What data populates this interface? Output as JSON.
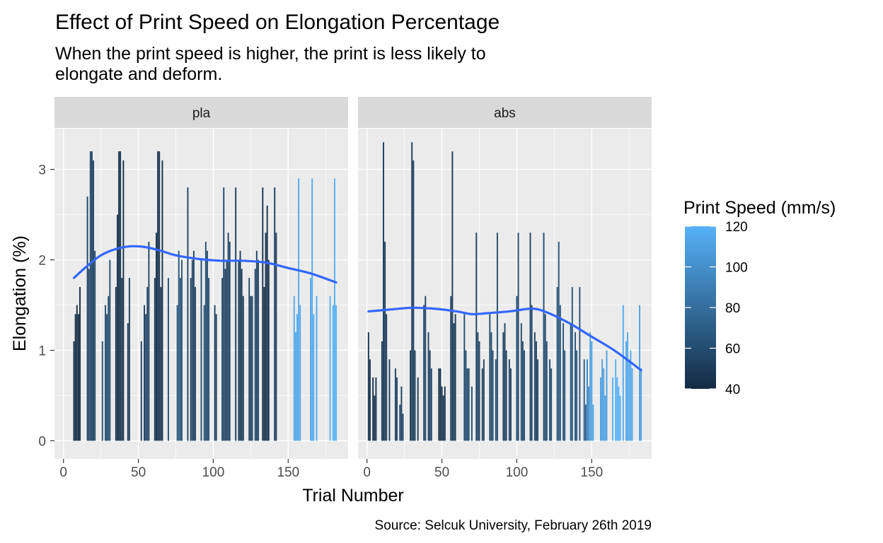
{
  "chart_data": {
    "type": "bar",
    "title": "Effect of Print Speed on Elongation Percentage",
    "subtitle_lines": [
      "When the print speed is higher, the print is less likely to",
      "elongate and deform."
    ],
    "xlabel": "Trial Number",
    "ylabel": "Elongation (%)",
    "caption": "Source: Selcuk University, February 26th 2019",
    "xlim": [
      -6,
      190
    ],
    "ylim": [
      -0.2,
      3.45
    ],
    "x_ticks": [
      0,
      50,
      100,
      150
    ],
    "y_ticks": [
      0,
      1,
      2,
      3
    ],
    "grid": true,
    "legend": {
      "title": "Print Speed (mm/s)",
      "type": "colorbar",
      "position": "right",
      "min": 40,
      "max": 120,
      "ticks": [
        40,
        60,
        80,
        100,
        120
      ],
      "colors": {
        "low": "#132B43",
        "high": "#56B1F7"
      }
    },
    "smooth_color": "#3366FF",
    "panels": [
      {
        "label": "pla",
        "bars": [
          {
            "x": 7,
            "y": 1.1,
            "s": 40
          },
          {
            "x": 8,
            "y": 1.4,
            "s": 40
          },
          {
            "x": 9,
            "y": 1.5,
            "s": 40
          },
          {
            "x": 10,
            "y": 1.4,
            "s": 40
          },
          {
            "x": 11,
            "y": 1.7,
            "s": 40
          },
          {
            "x": 16,
            "y": 2.7,
            "s": 55
          },
          {
            "x": 17,
            "y": 1.9,
            "s": 55
          },
          {
            "x": 18,
            "y": 3.2,
            "s": 55
          },
          {
            "x": 19,
            "y": 3.2,
            "s": 55
          },
          {
            "x": 20,
            "y": 3.1,
            "s": 55
          },
          {
            "x": 21,
            "y": 2.1,
            "s": 55
          },
          {
            "x": 26,
            "y": 1.1,
            "s": 60
          },
          {
            "x": 28,
            "y": 1.5,
            "s": 60
          },
          {
            "x": 29,
            "y": 1.4,
            "s": 60
          },
          {
            "x": 30,
            "y": 1.6,
            "s": 60
          },
          {
            "x": 31,
            "y": 2.0,
            "s": 60
          },
          {
            "x": 35,
            "y": 1.7,
            "s": 45
          },
          {
            "x": 36,
            "y": 2.5,
            "s": 45
          },
          {
            "x": 37,
            "y": 3.2,
            "s": 45
          },
          {
            "x": 38,
            "y": 3.2,
            "s": 45
          },
          {
            "x": 39,
            "y": 1.8,
            "s": 45
          },
          {
            "x": 40,
            "y": 3.1,
            "s": 45
          },
          {
            "x": 43,
            "y": 1.3,
            "s": 50
          },
          {
            "x": 44,
            "y": 1.8,
            "s": 50
          },
          {
            "x": 52,
            "y": 1.1,
            "s": 55
          },
          {
            "x": 54,
            "y": 1.5,
            "s": 55
          },
          {
            "x": 55,
            "y": 1.4,
            "s": 55
          },
          {
            "x": 56,
            "y": 1.7,
            "s": 55
          },
          {
            "x": 57,
            "y": 2.2,
            "s": 55
          },
          {
            "x": 61,
            "y": 1.8,
            "s": 45
          },
          {
            "x": 62,
            "y": 2.3,
            "s": 45
          },
          {
            "x": 63,
            "y": 3.2,
            "s": 45
          },
          {
            "x": 64,
            "y": 3.2,
            "s": 45
          },
          {
            "x": 65,
            "y": 1.7,
            "s": 45
          },
          {
            "x": 66,
            "y": 3.1,
            "s": 45
          },
          {
            "x": 70,
            "y": 1.8,
            "s": 60
          },
          {
            "x": 76,
            "y": 1.5,
            "s": 65
          },
          {
            "x": 77,
            "y": 2.1,
            "s": 65
          },
          {
            "x": 78,
            "y": 1.8,
            "s": 65
          },
          {
            "x": 79,
            "y": 2.0,
            "s": 65
          },
          {
            "x": 83,
            "y": 2.8,
            "s": 55
          },
          {
            "x": 85,
            "y": 1.8,
            "s": 55
          },
          {
            "x": 86,
            "y": 2.0,
            "s": 55
          },
          {
            "x": 87,
            "y": 2.1,
            "s": 55
          },
          {
            "x": 88,
            "y": 1.7,
            "s": 55
          },
          {
            "x": 92,
            "y": 2.0,
            "s": 60
          },
          {
            "x": 94,
            "y": 1.5,
            "s": 60
          },
          {
            "x": 95,
            "y": 2.2,
            "s": 60
          },
          {
            "x": 96,
            "y": 2.1,
            "s": 60
          },
          {
            "x": 97,
            "y": 1.8,
            "s": 60
          },
          {
            "x": 101,
            "y": 1.5,
            "s": 55
          },
          {
            "x": 102,
            "y": 1.4,
            "s": 55
          },
          {
            "x": 106,
            "y": 1.8,
            "s": 55
          },
          {
            "x": 107,
            "y": 2.8,
            "s": 55
          },
          {
            "x": 108,
            "y": 1.9,
            "s": 55
          },
          {
            "x": 109,
            "y": 2.0,
            "s": 55
          },
          {
            "x": 110,
            "y": 2.3,
            "s": 55
          },
          {
            "x": 111,
            "y": 2.2,
            "s": 55
          },
          {
            "x": 115,
            "y": 2.8,
            "s": 50
          },
          {
            "x": 117,
            "y": 2.0,
            "s": 50
          },
          {
            "x": 118,
            "y": 2.1,
            "s": 50
          },
          {
            "x": 119,
            "y": 1.9,
            "s": 50
          },
          {
            "x": 120,
            "y": 1.6,
            "s": 50
          },
          {
            "x": 124,
            "y": 1.8,
            "s": 55
          },
          {
            "x": 125,
            "y": 1.6,
            "s": 55
          },
          {
            "x": 126,
            "y": 1.6,
            "s": 55
          },
          {
            "x": 128,
            "y": 1.9,
            "s": 55
          },
          {
            "x": 129,
            "y": 2.1,
            "s": 55
          },
          {
            "x": 130,
            "y": 2.0,
            "s": 55
          },
          {
            "x": 133,
            "y": 2.8,
            "s": 45
          },
          {
            "x": 134,
            "y": 1.7,
            "s": 45
          },
          {
            "x": 135,
            "y": 2.3,
            "s": 45
          },
          {
            "x": 136,
            "y": 2.6,
            "s": 45
          },
          {
            "x": 137,
            "y": 2.0,
            "s": 45
          },
          {
            "x": 141,
            "y": 2.8,
            "s": 50
          },
          {
            "x": 142,
            "y": 2.3,
            "s": 50
          },
          {
            "x": 154,
            "y": 1.6,
            "s": 115
          },
          {
            "x": 155,
            "y": 1.2,
            "s": 115
          },
          {
            "x": 156,
            "y": 1.4,
            "s": 115
          },
          {
            "x": 157,
            "y": 2.9,
            "s": 115
          },
          {
            "x": 158,
            "y": 1.5,
            "s": 115
          },
          {
            "x": 165,
            "y": 1.8,
            "s": 115
          },
          {
            "x": 166,
            "y": 2.9,
            "s": 115
          },
          {
            "x": 167,
            "y": 1.4,
            "s": 115
          },
          {
            "x": 169,
            "y": 1.6,
            "s": 115
          },
          {
            "x": 178,
            "y": 1.6,
            "s": 120
          },
          {
            "x": 180,
            "y": 1.5,
            "s": 120
          },
          {
            "x": 181,
            "y": 2.9,
            "s": 120
          },
          {
            "x": 182,
            "y": 1.5,
            "s": 120
          }
        ],
        "smooth": {
          "x": [
            7,
            15,
            25,
            35,
            45,
            55,
            65,
            75,
            90,
            105,
            120,
            135,
            150,
            165,
            182
          ],
          "y": [
            1.8,
            1.92,
            2.05,
            2.12,
            2.15,
            2.14,
            2.1,
            2.05,
            2.01,
            1.99,
            1.99,
            1.97,
            1.91,
            1.85,
            1.75
          ]
        }
      },
      {
        "label": "abs",
        "bars": [
          {
            "x": 1,
            "y": 1.2,
            "s": 45
          },
          {
            "x": 2,
            "y": 0.9,
            "s": 45
          },
          {
            "x": 4,
            "y": 0.7,
            "s": 45
          },
          {
            "x": 5,
            "y": 0.5,
            "s": 45
          },
          {
            "x": 6,
            "y": 0.7,
            "s": 45
          },
          {
            "x": 10,
            "y": 1.1,
            "s": 50
          },
          {
            "x": 11,
            "y": 3.3,
            "s": 50
          },
          {
            "x": 12,
            "y": 2.2,
            "s": 50
          },
          {
            "x": 13,
            "y": 1.4,
            "s": 50
          },
          {
            "x": 15,
            "y": 0.9,
            "s": 50
          },
          {
            "x": 19,
            "y": 0.8,
            "s": 55
          },
          {
            "x": 20,
            "y": 0.7,
            "s": 55
          },
          {
            "x": 22,
            "y": 0.4,
            "s": 55
          },
          {
            "x": 23,
            "y": 0.6,
            "s": 55
          },
          {
            "x": 24,
            "y": 0.3,
            "s": 55
          },
          {
            "x": 29,
            "y": 1.0,
            "s": 50
          },
          {
            "x": 30,
            "y": 3.3,
            "s": 50
          },
          {
            "x": 31,
            "y": 3.1,
            "s": 50
          },
          {
            "x": 32,
            "y": 1.0,
            "s": 50
          },
          {
            "x": 34,
            "y": 0.7,
            "s": 50
          },
          {
            "x": 38,
            "y": 1.5,
            "s": 55
          },
          {
            "x": 39,
            "y": 1.6,
            "s": 55
          },
          {
            "x": 41,
            "y": 1.2,
            "s": 55
          },
          {
            "x": 42,
            "y": 1.0,
            "s": 55
          },
          {
            "x": 43,
            "y": 0.8,
            "s": 55
          },
          {
            "x": 48,
            "y": 0.8,
            "s": 45
          },
          {
            "x": 49,
            "y": 0.8,
            "s": 45
          },
          {
            "x": 50,
            "y": 0.6,
            "s": 45
          },
          {
            "x": 51,
            "y": 0.5,
            "s": 45
          },
          {
            "x": 52,
            "y": 0.6,
            "s": 45
          },
          {
            "x": 56,
            "y": 1.6,
            "s": 50
          },
          {
            "x": 57,
            "y": 3.2,
            "s": 50
          },
          {
            "x": 58,
            "y": 1.3,
            "s": 50
          },
          {
            "x": 59,
            "y": 1.4,
            "s": 50
          },
          {
            "x": 65,
            "y": 1.4,
            "s": 60
          },
          {
            "x": 66,
            "y": 1.0,
            "s": 60
          },
          {
            "x": 67,
            "y": 0.8,
            "s": 60
          },
          {
            "x": 68,
            "y": 0.8,
            "s": 60
          },
          {
            "x": 70,
            "y": 0.6,
            "s": 60
          },
          {
            "x": 73,
            "y": 2.3,
            "s": 55
          },
          {
            "x": 74,
            "y": 1.2,
            "s": 55
          },
          {
            "x": 75,
            "y": 1.1,
            "s": 55
          },
          {
            "x": 77,
            "y": 0.8,
            "s": 55
          },
          {
            "x": 78,
            "y": 0.9,
            "s": 55
          },
          {
            "x": 82,
            "y": 1.4,
            "s": 60
          },
          {
            "x": 83,
            "y": 1.2,
            "s": 60
          },
          {
            "x": 84,
            "y": 1.0,
            "s": 60
          },
          {
            "x": 86,
            "y": 0.9,
            "s": 60
          },
          {
            "x": 87,
            "y": 2.3,
            "s": 60
          },
          {
            "x": 91,
            "y": 1.2,
            "s": 55
          },
          {
            "x": 92,
            "y": 1.3,
            "s": 55
          },
          {
            "x": 93,
            "y": 1.0,
            "s": 55
          },
          {
            "x": 95,
            "y": 0.9,
            "s": 55
          },
          {
            "x": 96,
            "y": 0.8,
            "s": 55
          },
          {
            "x": 100,
            "y": 1.6,
            "s": 60
          },
          {
            "x": 101,
            "y": 2.3,
            "s": 60
          },
          {
            "x": 103,
            "y": 1.3,
            "s": 60
          },
          {
            "x": 104,
            "y": 1.1,
            "s": 60
          },
          {
            "x": 105,
            "y": 1.0,
            "s": 60
          },
          {
            "x": 109,
            "y": 2.3,
            "s": 55
          },
          {
            "x": 110,
            "y": 1.5,
            "s": 55
          },
          {
            "x": 112,
            "y": 1.2,
            "s": 55
          },
          {
            "x": 113,
            "y": 1.1,
            "s": 55
          },
          {
            "x": 114,
            "y": 0.9,
            "s": 55
          },
          {
            "x": 118,
            "y": 2.3,
            "s": 60
          },
          {
            "x": 119,
            "y": 1.4,
            "s": 60
          },
          {
            "x": 120,
            "y": 1.1,
            "s": 60
          },
          {
            "x": 122,
            "y": 0.9,
            "s": 60
          },
          {
            "x": 123,
            "y": 0.8,
            "s": 60
          },
          {
            "x": 127,
            "y": 1.7,
            "s": 65
          },
          {
            "x": 128,
            "y": 2.2,
            "s": 65
          },
          {
            "x": 129,
            "y": 1.5,
            "s": 65
          },
          {
            "x": 131,
            "y": 1.3,
            "s": 65
          },
          {
            "x": 132,
            "y": 1.0,
            "s": 65
          },
          {
            "x": 136,
            "y": 1.3,
            "s": 65
          },
          {
            "x": 137,
            "y": 1.7,
            "s": 65
          },
          {
            "x": 139,
            "y": 1.2,
            "s": 65
          },
          {
            "x": 140,
            "y": 1.0,
            "s": 65
          },
          {
            "x": 142,
            "y": 1.7,
            "s": 65
          },
          {
            "x": 145,
            "y": 0.9,
            "s": 70
          },
          {
            "x": 146,
            "y": 0.4,
            "s": 70
          },
          {
            "x": 147,
            "y": 0.9,
            "s": 95
          },
          {
            "x": 148,
            "y": 0.6,
            "s": 100
          },
          {
            "x": 149,
            "y": 1.2,
            "s": 110
          },
          {
            "x": 150,
            "y": 1.1,
            "s": 110
          },
          {
            "x": 151,
            "y": 0.4,
            "s": 115
          },
          {
            "x": 156,
            "y": 0.7,
            "s": 110
          },
          {
            "x": 157,
            "y": 0.9,
            "s": 110
          },
          {
            "x": 158,
            "y": 0.8,
            "s": 110
          },
          {
            "x": 159,
            "y": 0.5,
            "s": 110
          },
          {
            "x": 160,
            "y": 1.0,
            "s": 110
          },
          {
            "x": 164,
            "y": 0.7,
            "s": 120
          },
          {
            "x": 166,
            "y": 0.9,
            "s": 120
          },
          {
            "x": 167,
            "y": 0.7,
            "s": 120
          },
          {
            "x": 168,
            "y": 0.6,
            "s": 120
          },
          {
            "x": 169,
            "y": 0.5,
            "s": 120
          },
          {
            "x": 171,
            "y": 1.5,
            "s": 115
          },
          {
            "x": 173,
            "y": 1.1,
            "s": 115
          },
          {
            "x": 174,
            "y": 1.2,
            "s": 115
          },
          {
            "x": 175,
            "y": 0.9,
            "s": 115
          },
          {
            "x": 176,
            "y": 1.0,
            "s": 115
          },
          {
            "x": 177,
            "y": 0.8,
            "s": 115
          },
          {
            "x": 182,
            "y": 1.5,
            "s": 110
          },
          {
            "x": 183,
            "y": 0.8,
            "s": 110
          }
        ],
        "smooth": {
          "x": [
            1,
            15,
            30,
            45,
            60,
            70,
            80,
            95,
            110,
            120,
            135,
            150,
            165,
            183
          ],
          "y": [
            1.43,
            1.45,
            1.47,
            1.46,
            1.43,
            1.4,
            1.41,
            1.43,
            1.46,
            1.42,
            1.3,
            1.15,
            1.0,
            0.78
          ]
        }
      }
    ]
  }
}
